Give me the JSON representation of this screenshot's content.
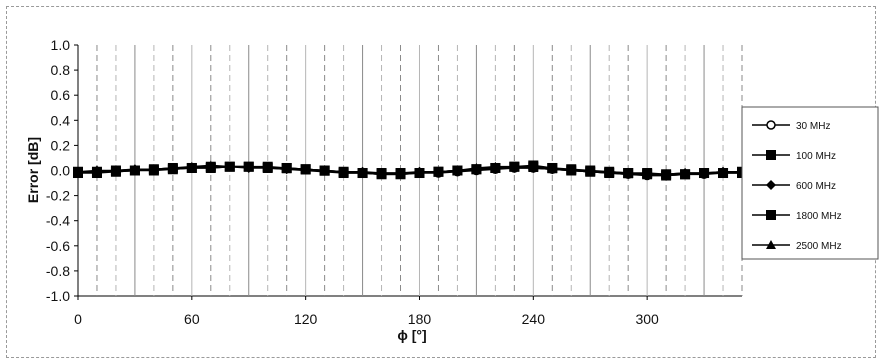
{
  "chart_data": {
    "type": "line",
    "title": "",
    "xlabel": "ϕ [°]",
    "ylabel": "Error [dB]",
    "xlim": [
      0,
      350
    ],
    "ylim": [
      -1.0,
      1.0
    ],
    "xticks": [
      "0",
      "60",
      "120",
      "180",
      "240",
      "300"
    ],
    "yticks": [
      "1.0",
      "0.8",
      "0.6",
      "0.4",
      "0.2",
      "0.0",
      "-0.2",
      "-0.4",
      "-0.6",
      "-0.8",
      "-1.0"
    ],
    "grid": false,
    "legend_position": "right",
    "x": [
      0,
      10,
      20,
      30,
      40,
      50,
      60,
      70,
      80,
      90,
      100,
      110,
      120,
      130,
      140,
      150,
      160,
      170,
      180,
      190,
      200,
      210,
      220,
      230,
      240,
      250,
      260,
      270,
      280,
      290,
      300,
      310,
      320,
      330,
      340,
      350
    ],
    "series": [
      {
        "name": "30 MHz",
        "marker": "circle-open",
        "color": "#000000",
        "values": [
          -0.02,
          -0.01,
          -0.01,
          0.0,
          0.01,
          0.01,
          0.02,
          0.02,
          0.03,
          0.03,
          0.02,
          0.02,
          0.01,
          0.0,
          -0.01,
          -0.02,
          -0.03,
          -0.03,
          -0.02,
          -0.02,
          -0.01,
          0.0,
          0.01,
          0.02,
          0.02,
          0.01,
          0.0,
          -0.01,
          -0.02,
          -0.03,
          -0.04,
          -0.04,
          -0.03,
          -0.03,
          -0.02,
          -0.02
        ]
      },
      {
        "name": "100 MHz",
        "marker": "square",
        "color": "#000000",
        "values": [
          -0.01,
          -0.01,
          0.0,
          0.0,
          0.01,
          0.02,
          0.02,
          0.03,
          0.03,
          0.03,
          0.02,
          0.02,
          0.01,
          0.0,
          -0.01,
          -0.02,
          -0.02,
          -0.02,
          -0.02,
          -0.01,
          0.0,
          0.01,
          0.02,
          0.03,
          0.03,
          0.02,
          0.01,
          0.0,
          -0.01,
          -0.02,
          -0.02,
          -0.03,
          -0.03,
          -0.02,
          -0.02,
          -0.01
        ]
      },
      {
        "name": "600 MHz",
        "marker": "diamond",
        "color": "#000000",
        "values": [
          -0.01,
          0.0,
          0.0,
          0.01,
          0.01,
          0.02,
          0.02,
          0.03,
          0.03,
          0.02,
          0.02,
          0.01,
          0.01,
          0.0,
          -0.01,
          -0.01,
          -0.02,
          -0.02,
          -0.01,
          -0.01,
          0.0,
          0.01,
          0.02,
          0.02,
          0.02,
          0.01,
          0.0,
          -0.01,
          -0.01,
          -0.02,
          -0.03,
          -0.03,
          -0.02,
          -0.02,
          -0.01,
          -0.01
        ]
      },
      {
        "name": "1800 MHz",
        "marker": "square",
        "color": "#000000",
        "values": [
          -0.02,
          -0.02,
          -0.01,
          0.0,
          0.0,
          0.01,
          0.02,
          0.02,
          0.03,
          0.03,
          0.03,
          0.02,
          0.01,
          0.0,
          -0.02,
          -0.02,
          -0.03,
          -0.03,
          -0.02,
          -0.01,
          0.0,
          0.01,
          0.02,
          0.03,
          0.04,
          0.02,
          0.0,
          -0.01,
          -0.02,
          -0.02,
          -0.03,
          -0.04,
          -0.03,
          -0.02,
          -0.02,
          -0.02
        ]
      },
      {
        "name": "2500 MHz",
        "marker": "triangle",
        "color": "#000000",
        "values": [
          -0.01,
          -0.01,
          0.0,
          0.01,
          0.01,
          0.02,
          0.03,
          0.04,
          0.03,
          0.03,
          0.02,
          0.01,
          0.0,
          -0.01,
          -0.02,
          -0.02,
          -0.03,
          -0.02,
          -0.02,
          -0.01,
          0.0,
          0.02,
          0.03,
          0.03,
          0.02,
          0.01,
          0.0,
          -0.01,
          -0.02,
          -0.03,
          -0.03,
          -0.03,
          -0.02,
          -0.02,
          -0.01,
          -0.01
        ]
      }
    ]
  }
}
